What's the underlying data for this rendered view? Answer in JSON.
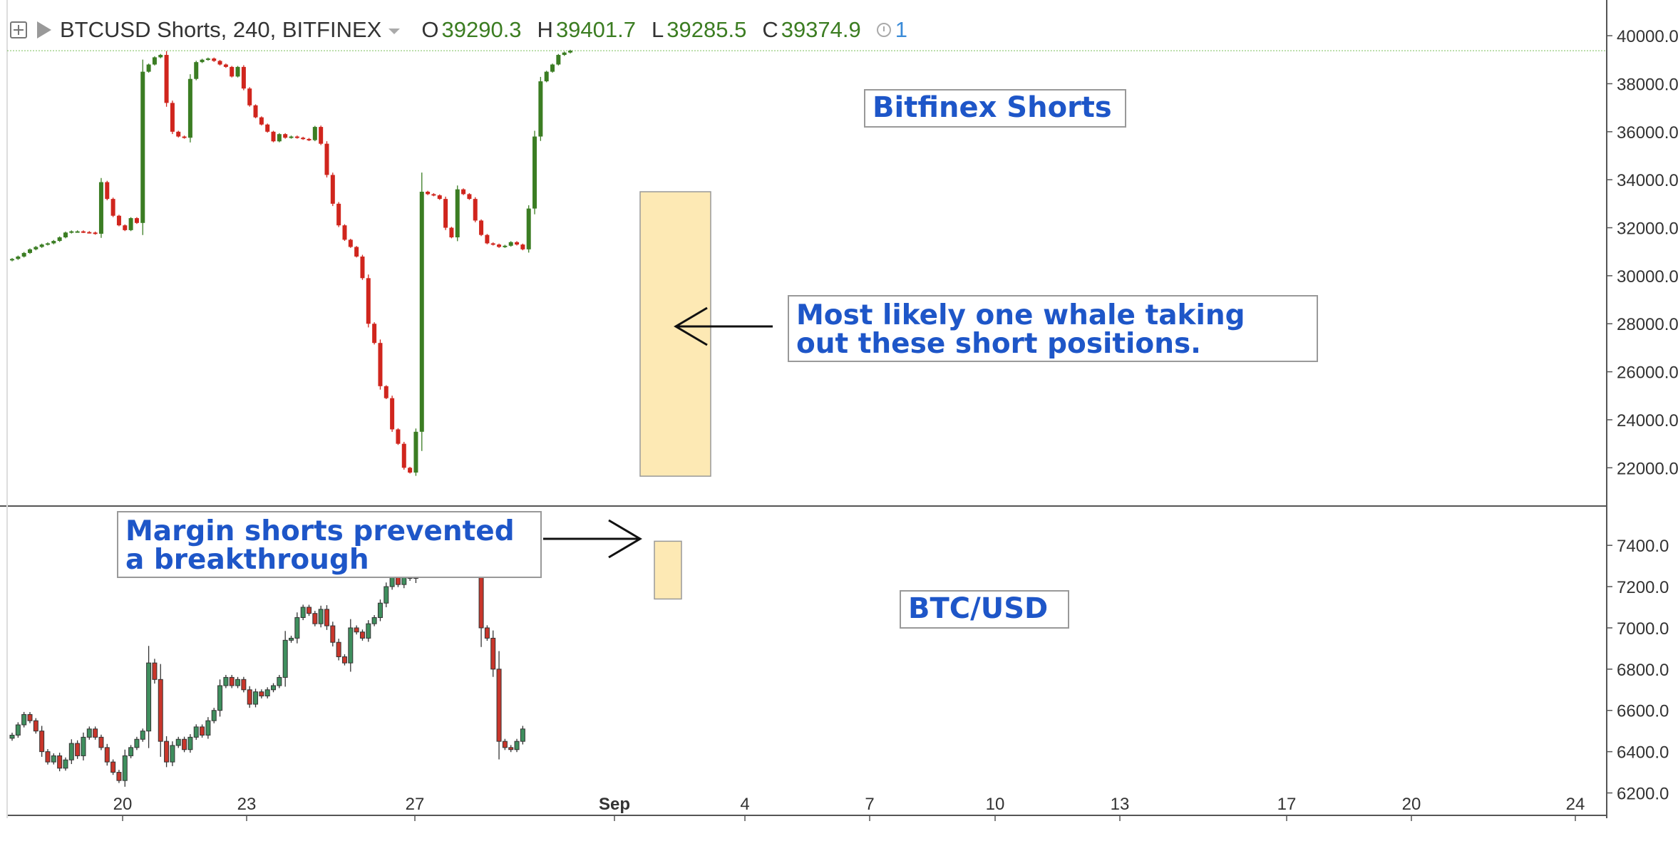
{
  "header": {
    "symbol": "BTCUSD Shorts, 240, BITFINEX",
    "open_label": "O",
    "open_value": "39290.3",
    "high_label": "H",
    "high_value": "39401.7",
    "low_label": "L",
    "low_value": "39285.5",
    "close_label": "C",
    "close_value": "39374.9",
    "alert_count": "1"
  },
  "annotations": {
    "bitfinex_shorts": "Bitfinex Shorts",
    "whale_line1": "Most likely one whale taking",
    "whale_line2": "out these short positions.",
    "margin_line1": "Margin shorts prevented",
    "margin_line2": "a breakthrough",
    "btc_usd": "BTC/USD"
  },
  "colors": {
    "up": "#3b7d23",
    "down": "#d0251d",
    "up_lower": "#3f8f5e",
    "down_lower": "#c9362b",
    "highlight": "#fde9b4"
  },
  "chart_data": [
    {
      "type": "candlestick",
      "name": "BTCUSD Shorts, 240, BITFINEX",
      "ylim": [
        21000,
        40300
      ],
      "y_ticks": [
        "40000.0",
        "38000.0",
        "36000.0",
        "34000.0",
        "32000.0",
        "30000.0",
        "28000.0",
        "26000.0",
        "24000.0",
        "22000.0"
      ],
      "y_tick_values": [
        40000,
        38000,
        36000,
        34000,
        32000,
        30000,
        28000,
        26000,
        24000,
        22000
      ],
      "last_price": 39374.9,
      "close": [
        30700,
        30800,
        30950,
        31100,
        31200,
        31300,
        31350,
        31450,
        31600,
        31800,
        31850,
        31850,
        31820,
        31800,
        31750,
        33900,
        33200,
        32500,
        32100,
        31900,
        32400,
        32200,
        38500,
        38800,
        39100,
        39200,
        37200,
        36000,
        35800,
        35750,
        38200,
        38900,
        39000,
        39050,
        38950,
        38800,
        38700,
        38300,
        38700,
        37800,
        37100,
        36600,
        36300,
        36000,
        35600,
        35900,
        35750,
        35800,
        35750,
        35700,
        35650,
        36200,
        35500,
        34200,
        33000,
        32100,
        31500,
        31200,
        30800,
        29900,
        28000,
        27200,
        25400,
        24900,
        23600,
        23000,
        22000,
        21800,
        23500,
        33500,
        33400,
        33350,
        33200,
        32000,
        31600,
        33600,
        33400,
        33200,
        32300,
        31700,
        31350,
        31300,
        31200,
        31250,
        31400,
        31300,
        31100,
        32800,
        35800,
        38100,
        38500,
        38800,
        39200,
        39300,
        39374.9
      ],
      "x_ticks": [
        "20",
        "23",
        "27",
        "Sep",
        "4",
        "7",
        "10",
        "13",
        "17",
        "20",
        "24"
      ]
    },
    {
      "type": "candlestick",
      "name": "BTC/USD",
      "ylim": [
        6150,
        7480
      ],
      "y_ticks": [
        "7400.0",
        "7200.0",
        "7000.0",
        "6800.0",
        "6600.0",
        "6400.0",
        "6200.0"
      ],
      "y_tick_values": [
        7400,
        7200,
        7000,
        6800,
        6600,
        6400,
        6200
      ],
      "close": [
        6480,
        6530,
        6580,
        6550,
        6500,
        6400,
        6350,
        6380,
        6320,
        6360,
        6440,
        6380,
        6470,
        6510,
        6470,
        6420,
        6350,
        6300,
        6260,
        6380,
        6420,
        6460,
        6500,
        6830,
        6750,
        6450,
        6350,
        6430,
        6460,
        6410,
        6470,
        6520,
        6480,
        6550,
        6600,
        6720,
        6760,
        6720,
        6750,
        6700,
        6630,
        6690,
        6670,
        6700,
        6720,
        6760,
        6940,
        6950,
        7050,
        7100,
        7070,
        7020,
        7090,
        7010,
        6930,
        6860,
        6830,
        7000,
        6980,
        6950,
        7020,
        7050,
        7120,
        7200,
        7260,
        7210,
        7280,
        7240,
        7330,
        7320,
        7280,
        7270,
        7320,
        7280,
        7380,
        7340,
        7360,
        7380,
        7370,
        7000,
        6950,
        6800,
        6450,
        6420,
        6410,
        6450,
        6510
      ]
    }
  ]
}
